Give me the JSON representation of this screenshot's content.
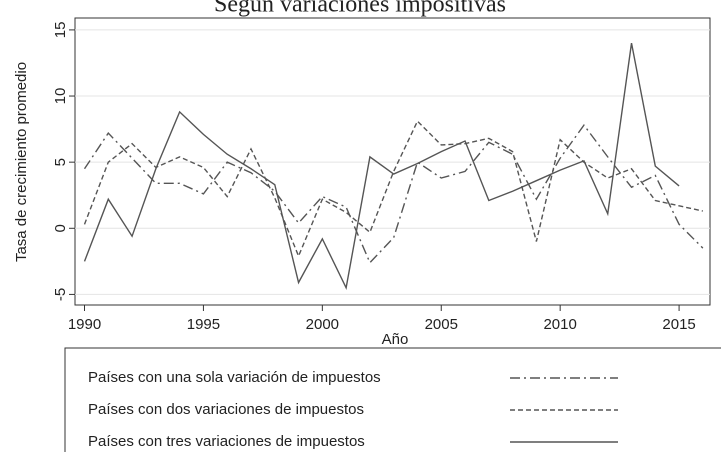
{
  "chart_data": {
    "type": "line",
    "title": "Según variaciones impositivas",
    "x_label": "Año",
    "y_label": "Tasa de crecimiento promedio",
    "x": [
      1990,
      1991,
      1992,
      1993,
      1994,
      1995,
      1996,
      1997,
      1998,
      1999,
      2000,
      2001,
      2002,
      2003,
      2004,
      2005,
      2006,
      2007,
      2008,
      2009,
      2010,
      2011,
      2012,
      2013,
      2014,
      2015,
      2016
    ],
    "series": [
      {
        "name": "Países con una sola variación de impuestos",
        "color": "#555555",
        "dash": "dashdot",
        "values": [
          4.5,
          7.2,
          5.3,
          3.4,
          3.4,
          2.6,
          5.0,
          4.2,
          2.8,
          0.4,
          2.4,
          1.6,
          -2.6,
          -0.7,
          5.0,
          3.8,
          4.3,
          6.5,
          5.6,
          2.2,
          5.3,
          7.8,
          5.4,
          3.1,
          4.0,
          0.3,
          -1.5
        ]
      },
      {
        "name": "Países con dos variaciones de impuestos",
        "color": "#555555",
        "dash": "dashed",
        "values": [
          0.3,
          5.0,
          6.4,
          4.6,
          5.4,
          4.6,
          2.4,
          6.0,
          2.3,
          -2.1,
          2.2,
          1.2,
          -0.3,
          4.3,
          8.1,
          6.3,
          6.4,
          6.8,
          5.8,
          -1.0,
          6.7,
          5.0,
          3.8,
          4.5,
          2.1,
          1.7,
          1.3
        ]
      },
      {
        "name": "Países con tres variaciones de impuestos",
        "color": "#555555",
        "dash": "solid",
        "values": [
          -2.5,
          2.2,
          -0.6,
          4.5,
          8.8,
          7.1,
          5.6,
          4.5,
          3.3,
          -4.1,
          -0.8,
          -4.5,
          5.4,
          4.1,
          4.9,
          5.8,
          6.6,
          2.1,
          2.8,
          3.6,
          4.4,
          5.1,
          1.1,
          14.0,
          4.7,
          3.2,
          null
        ]
      }
    ],
    "xlim": [
      1989.6,
      2016.3
    ],
    "xticks": [
      1990,
      1995,
      2000,
      2005,
      2010,
      2015
    ],
    "ylim": [
      -5.8,
      15.9
    ],
    "yticks": [
      -5,
      0,
      5,
      10,
      15
    ],
    "grid": true
  }
}
